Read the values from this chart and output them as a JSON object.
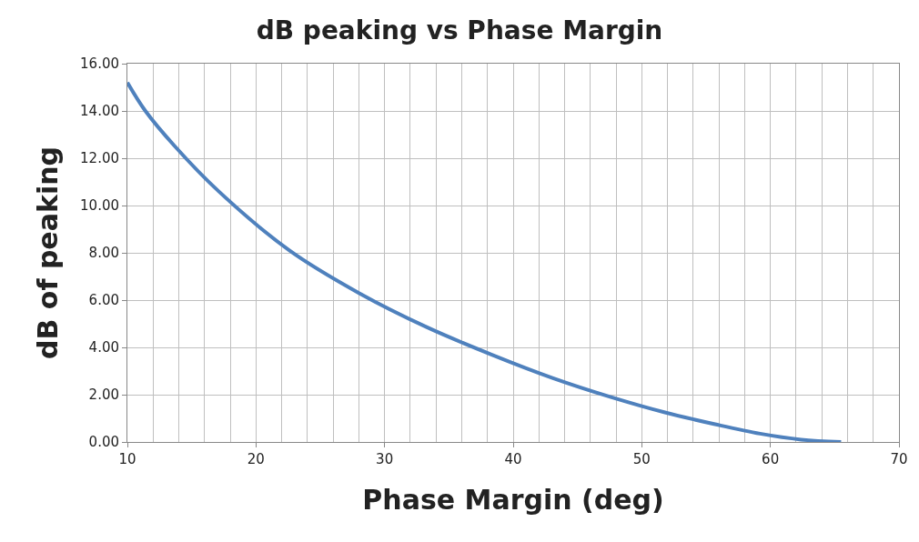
{
  "chart_data": {
    "type": "line",
    "title": "dB peaking vs Phase Margin",
    "xlabel": "Phase Margin (deg)",
    "ylabel": "dB of peaking",
    "series": [
      {
        "color": "#4f81bd",
        "x": [
          10,
          11.4,
          13.7,
          17.1,
          22.6,
          28.0,
          33.3,
          38.3,
          43.1,
          47.6,
          51.8,
          55.7,
          59.2,
          62.4,
          65.5
        ],
        "values": [
          15.2,
          14.0,
          12.5,
          10.6,
          8.1,
          6.3,
          4.85,
          3.7,
          2.7,
          1.9,
          1.25,
          0.75,
          0.35,
          0.1,
          0.0
        ]
      }
    ],
    "xlim": [
      10,
      70
    ],
    "xticks": [
      10,
      20,
      30,
      40,
      50,
      60,
      70
    ],
    "ylim": [
      0,
      16
    ],
    "yticks": [
      {
        "value": 0,
        "label": "0.00"
      },
      {
        "value": 2,
        "label": "2.00"
      },
      {
        "value": 4,
        "label": "4.00"
      },
      {
        "value": 6,
        "label": "6.00"
      },
      {
        "value": 8,
        "label": "8.00"
      },
      {
        "value": 10,
        "label": "10.00"
      },
      {
        "value": 12,
        "label": "12.00"
      },
      {
        "value": 14,
        "label": "14.00"
      },
      {
        "value": 16,
        "label": "16.00"
      }
    ],
    "grid": true,
    "legend": false,
    "marker": "none",
    "line_style": "solid"
  }
}
